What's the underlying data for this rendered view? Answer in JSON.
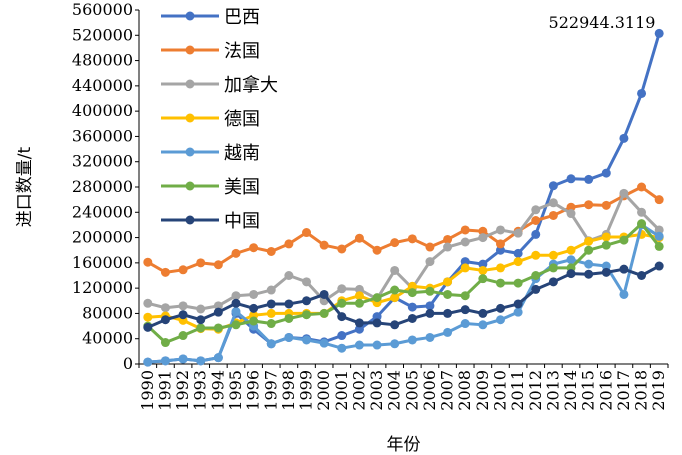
{
  "chart_data": {
    "type": "line",
    "xlabel": "年份",
    "ylabel": "进口数量/t",
    "ylim": [
      0,
      560000
    ],
    "yticks": [
      0,
      40000,
      80000,
      120000,
      160000,
      200000,
      240000,
      280000,
      320000,
      360000,
      400000,
      440000,
      480000,
      520000,
      560000
    ],
    "x": [
      "1990",
      "1991",
      "1992",
      "1993",
      "1994",
      "1995",
      "1996",
      "1997",
      "1998",
      "1999",
      "2000",
      "2001",
      "2002",
      "2003",
      "2004",
      "2005",
      "2006",
      "2007",
      "2008",
      "2009",
      "2010",
      "2011",
      "2012",
      "2013",
      "2014",
      "2015",
      "2016",
      "2017",
      "2018",
      "2019"
    ],
    "legend_position": "top-left",
    "annotation": {
      "text": "522944.3119",
      "series": "巴西",
      "index": 29
    },
    "series": [
      {
        "name": "巴西",
        "color": "#4472C4",
        "values": [
          3000,
          5000,
          8000,
          5000,
          10000,
          80000,
          55000,
          32000,
          42000,
          40000,
          35000,
          45000,
          55000,
          75000,
          105000,
          90000,
          92000,
          130000,
          162000,
          158000,
          180000,
          175000,
          205000,
          282000,
          293000,
          292000,
          302000,
          357000,
          428000,
          522944
        ]
      },
      {
        "name": "法国",
        "color": "#ED7D31",
        "values": [
          161000,
          145000,
          149000,
          160000,
          157000,
          175000,
          184000,
          178000,
          190000,
          208000,
          188000,
          182000,
          199000,
          180000,
          192000,
          198000,
          185000,
          197000,
          212000,
          210000,
          190000,
          210000,
          227000,
          235000,
          248000,
          252000,
          251000,
          266000,
          280000,
          260000
        ]
      },
      {
        "name": "加拿大",
        "color": "#A5A5A5",
        "values": [
          96000,
          89000,
          92000,
          87000,
          92000,
          108000,
          110000,
          117000,
          140000,
          130000,
          100000,
          119000,
          118000,
          103000,
          148000,
          120000,
          162000,
          185000,
          193000,
          200000,
          212000,
          207000,
          244000,
          255000,
          238000,
          195000,
          205000,
          270000,
          240000,
          212000
        ]
      },
      {
        "name": "德国",
        "color": "#FFC000",
        "values": [
          74000,
          76000,
          69000,
          56000,
          55000,
          65000,
          77000,
          80000,
          80000,
          80000,
          80000,
          100000,
          108000,
          97000,
          105000,
          123000,
          120000,
          130000,
          152000,
          148000,
          152000,
          162000,
          172000,
          172000,
          180000,
          194000,
          201000,
          201000,
          205000,
          200000
        ]
      },
      {
        "name": "越南",
        "color": "#5B9BD5",
        "values": [
          3000,
          5000,
          8000,
          5000,
          10000,
          83000,
          60000,
          32000,
          42000,
          38000,
          33000,
          25000,
          30000,
          30000,
          32000,
          38000,
          42000,
          50000,
          64000,
          62000,
          70000,
          82000,
          135000,
          158000,
          165000,
          158000,
          155000,
          110000,
          220000,
          202000
        ]
      },
      {
        "name": "美国",
        "color": "#70AD47",
        "values": [
          60000,
          34000,
          45000,
          57000,
          57000,
          62000,
          68000,
          64000,
          72000,
          78000,
          80000,
          96000,
          96000,
          105000,
          117000,
          113000,
          115000,
          110000,
          108000,
          135000,
          128000,
          128000,
          140000,
          152000,
          152000,
          180000,
          188000,
          196000,
          222000,
          186000
        ]
      },
      {
        "name": "中国",
        "color": "#264478",
        "values": [
          58000,
          70000,
          78000,
          70000,
          82000,
          96000,
          88000,
          95000,
          95000,
          100000,
          110000,
          75000,
          65000,
          65000,
          62000,
          72000,
          80000,
          80000,
          86000,
          80000,
          88000,
          95000,
          118000,
          130000,
          143000,
          142000,
          145000,
          150000,
          140000,
          155000
        ]
      }
    ]
  }
}
